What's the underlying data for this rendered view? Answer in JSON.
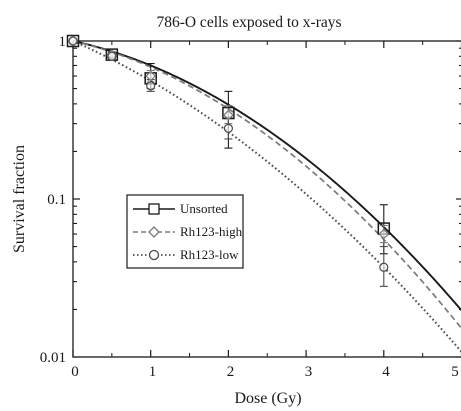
{
  "chart_data": {
    "type": "line",
    "title": "786-O cells exposed to x-rays",
    "xlabel": "Dose (Gy)",
    "ylabel": "Survival fraction",
    "xlim": [
      0,
      5
    ],
    "ylim": [
      0.01,
      1
    ],
    "yscale": "log",
    "x_ticks": [
      "0",
      "1",
      "2",
      "3",
      "4",
      "5"
    ],
    "y_ticks": [
      "0.01",
      "0.1",
      "1"
    ],
    "legend_position": "center-left",
    "grid": false,
    "series": [
      {
        "name": "Unsorted",
        "marker": "square",
        "line_style": "solid",
        "color": "#1a1a1a",
        "points": [
          {
            "x": 0,
            "y": 1.0,
            "err": [
              1.0,
              1.0
            ]
          },
          {
            "x": 0.5,
            "y": 0.82,
            "err": [
              0.79,
              0.85
            ]
          },
          {
            "x": 1,
            "y": 0.58,
            "err": [
              0.5,
              0.72
            ]
          },
          {
            "x": 2,
            "y": 0.35,
            "err": [
              0.21,
              0.48
            ]
          },
          {
            "x": 4,
            "y": 0.065,
            "err": [
              0.045,
              0.092
            ]
          }
        ],
        "fit": {
          "alpha": 0.25,
          "beta": 0.107
        }
      },
      {
        "name": "Rh123-high",
        "marker": "diamond",
        "line_style": "dashed",
        "color": "#7a7a7a",
        "points": [
          {
            "x": 0,
            "y": 1.0,
            "err": [
              1.0,
              1.0
            ]
          },
          {
            "x": 0.5,
            "y": 0.82,
            "err": [
              0.8,
              0.84
            ]
          },
          {
            "x": 1,
            "y": 0.6,
            "err": [
              0.55,
              0.65
            ]
          },
          {
            "x": 2,
            "y": 0.34,
            "err": [
              0.3,
              0.39
            ]
          },
          {
            "x": 4,
            "y": 0.06,
            "err": [
              0.053,
              0.068
            ]
          }
        ],
        "fit": {
          "alpha": 0.265,
          "beta": 0.1145
        }
      },
      {
        "name": "Rh123-low",
        "marker": "circle",
        "line_style": "dotted",
        "color": "#4a4a4a",
        "points": [
          {
            "x": 0,
            "y": 1.0,
            "err": [
              1.0,
              1.0
            ]
          },
          {
            "x": 0.5,
            "y": 0.8,
            "err": [
              0.78,
              0.82
            ]
          },
          {
            "x": 1,
            "y": 0.52,
            "err": [
              0.48,
              0.57
            ]
          },
          {
            "x": 2,
            "y": 0.28,
            "err": [
              0.24,
              0.33
            ]
          },
          {
            "x": 4,
            "y": 0.037,
            "err": [
              0.028,
              0.05
            ]
          }
        ],
        "fit": {
          "alpha": 0.5,
          "beta": 0.0812
        }
      }
    ]
  }
}
